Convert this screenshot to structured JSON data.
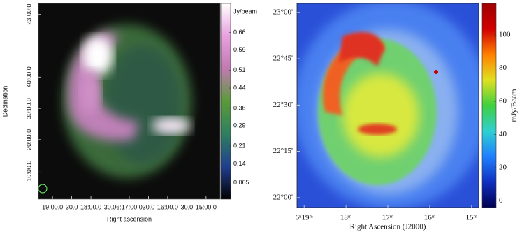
{
  "chart_data": [
    {
      "type": "image",
      "xlabel": "Right ascension",
      "ylabel": "Declination",
      "xlim": [
        1162,
        878
      ],
      "ylim": [
        1,
        63.5
      ],
      "xticks": [
        {
          "value": 1140,
          "label": "19:00.0"
        },
        {
          "value": 1110,
          "label": "30.0"
        },
        {
          "value": 1080,
          "label": "18:00.0"
        },
        {
          "value": 1050,
          "label": "30.0"
        },
        {
          "value": 1020,
          "label": "6:17:00.0"
        },
        {
          "value": 990,
          "label": "30.0"
        },
        {
          "value": 960,
          "label": "16:00.0"
        },
        {
          "value": 930,
          "label": "30.0"
        },
        {
          "value": 900,
          "label": "15:00.0"
        }
      ],
      "yticks": [
        {
          "value": 10,
          "label": "10:00.0"
        },
        {
          "value": 20,
          "label": "20:00.0"
        },
        {
          "value": 30,
          "label": "30:00.0"
        },
        {
          "value": 40,
          "label": "40:00.0"
        },
        {
          "value": 60,
          "label": "23:00:0"
        }
      ],
      "colorbar": {
        "label": "Jy/beam",
        "lim": [
          0,
          0.775
        ],
        "ticks": [
          0.065,
          0.14,
          0.21,
          0.29,
          0.36,
          0.44,
          0.51,
          0.59,
          0.66
        ],
        "colors": [
          "#000000",
          "#1f3f8f",
          "#2f7f5f",
          "#5a9a3a",
          "#c07ab0",
          "#e8a0e0",
          "#ffffff"
        ]
      }
    },
    {
      "type": "image",
      "xlabel": "Right Ascension (J2000)",
      "xlim": [
        19.17,
        14.83
      ],
      "ylim": [
        -3.2,
        62.9
      ],
      "xticks": [
        {
          "value": 19,
          "label": "6ʰ19ᵐ"
        },
        {
          "value": 18,
          "label": "18ᵐ"
        },
        {
          "value": 17,
          "label": "17ᵐ"
        },
        {
          "value": 16,
          "label": "16ᵐ"
        },
        {
          "value": 15,
          "label": "15ᵐ"
        }
      ],
      "yticks": [
        {
          "value": 0,
          "label": "22°00'"
        },
        {
          "value": 15,
          "label": "22°15'"
        },
        {
          "value": 30,
          "label": "22°30'"
        },
        {
          "value": 45,
          "label": "22°45'"
        },
        {
          "value": 60,
          "label": "23°00'"
        }
      ],
      "colorbar": {
        "label": "mJy/Beam",
        "lim": [
          -4,
          119
        ],
        "ticks": [
          0,
          20,
          40,
          60,
          80,
          100
        ],
        "colors": [
          "#000050",
          "#1030c0",
          "#2080ff",
          "#30d0d0",
          "#40d040",
          "#e0e020",
          "#ff8000",
          "#d00000",
          "#a00000"
        ]
      }
    }
  ]
}
